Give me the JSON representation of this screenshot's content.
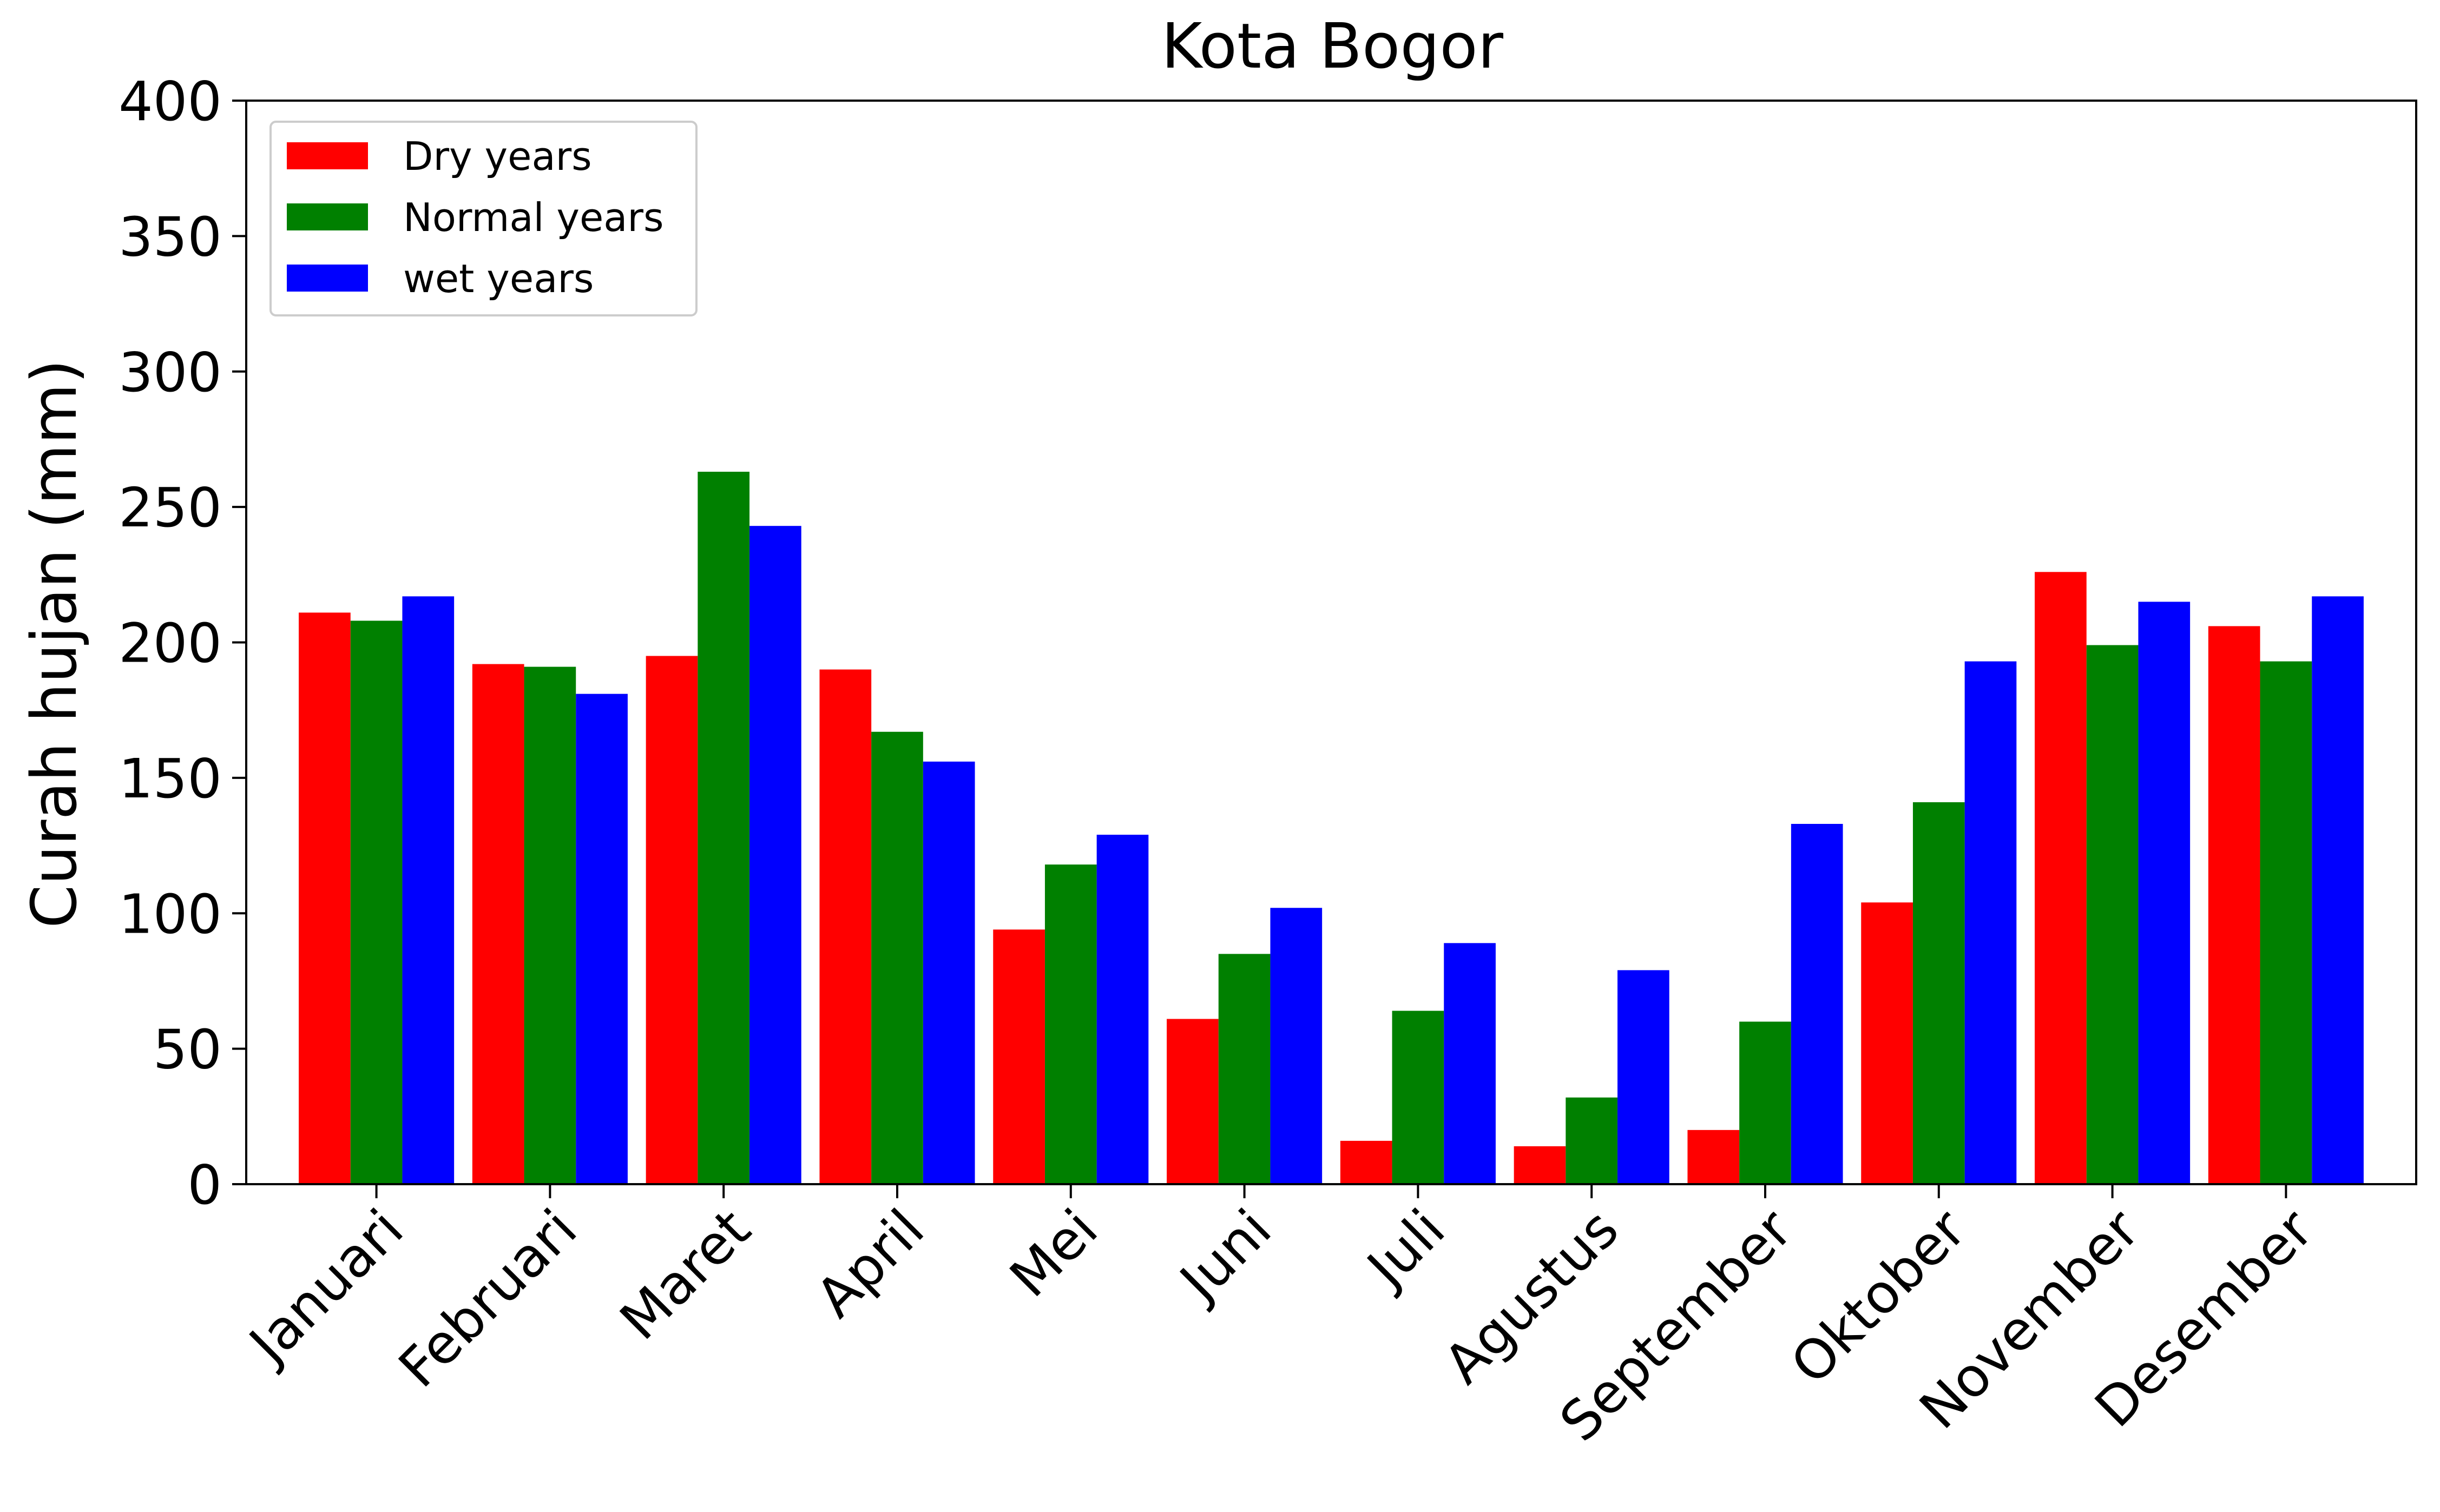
{
  "chart_data": {
    "type": "bar",
    "title": "Kota Bogor",
    "xlabel": "",
    "ylabel": "Curah hujan (mm)",
    "ylim": [
      0,
      400
    ],
    "yticks": [
      "0",
      "50",
      "100",
      "150",
      "200",
      "250",
      "300",
      "350",
      "400"
    ],
    "categories": [
      "Januari",
      "Februari",
      "Maret",
      "April",
      "Mei",
      "Juni",
      "Juli",
      "Agustus",
      "September",
      "Oktober",
      "November",
      "Desember"
    ],
    "series": [
      {
        "name": "Dry years",
        "color": "#ff0000",
        "values": [
          211,
          192,
          195,
          190,
          94,
          61,
          16,
          14,
          20,
          104,
          226,
          206
        ]
      },
      {
        "name": "Normal years",
        "color": "#008000",
        "values": [
          208,
          191,
          263,
          167,
          118,
          85,
          64,
          32,
          60,
          141,
          199,
          193
        ]
      },
      {
        "name": "wet years",
        "color": "#0000ff",
        "values": [
          217,
          181,
          243,
          156,
          129,
          102,
          89,
          79,
          133,
          193,
          215,
          217
        ]
      }
    ],
    "legend_position": "top-left",
    "grid": false
  }
}
